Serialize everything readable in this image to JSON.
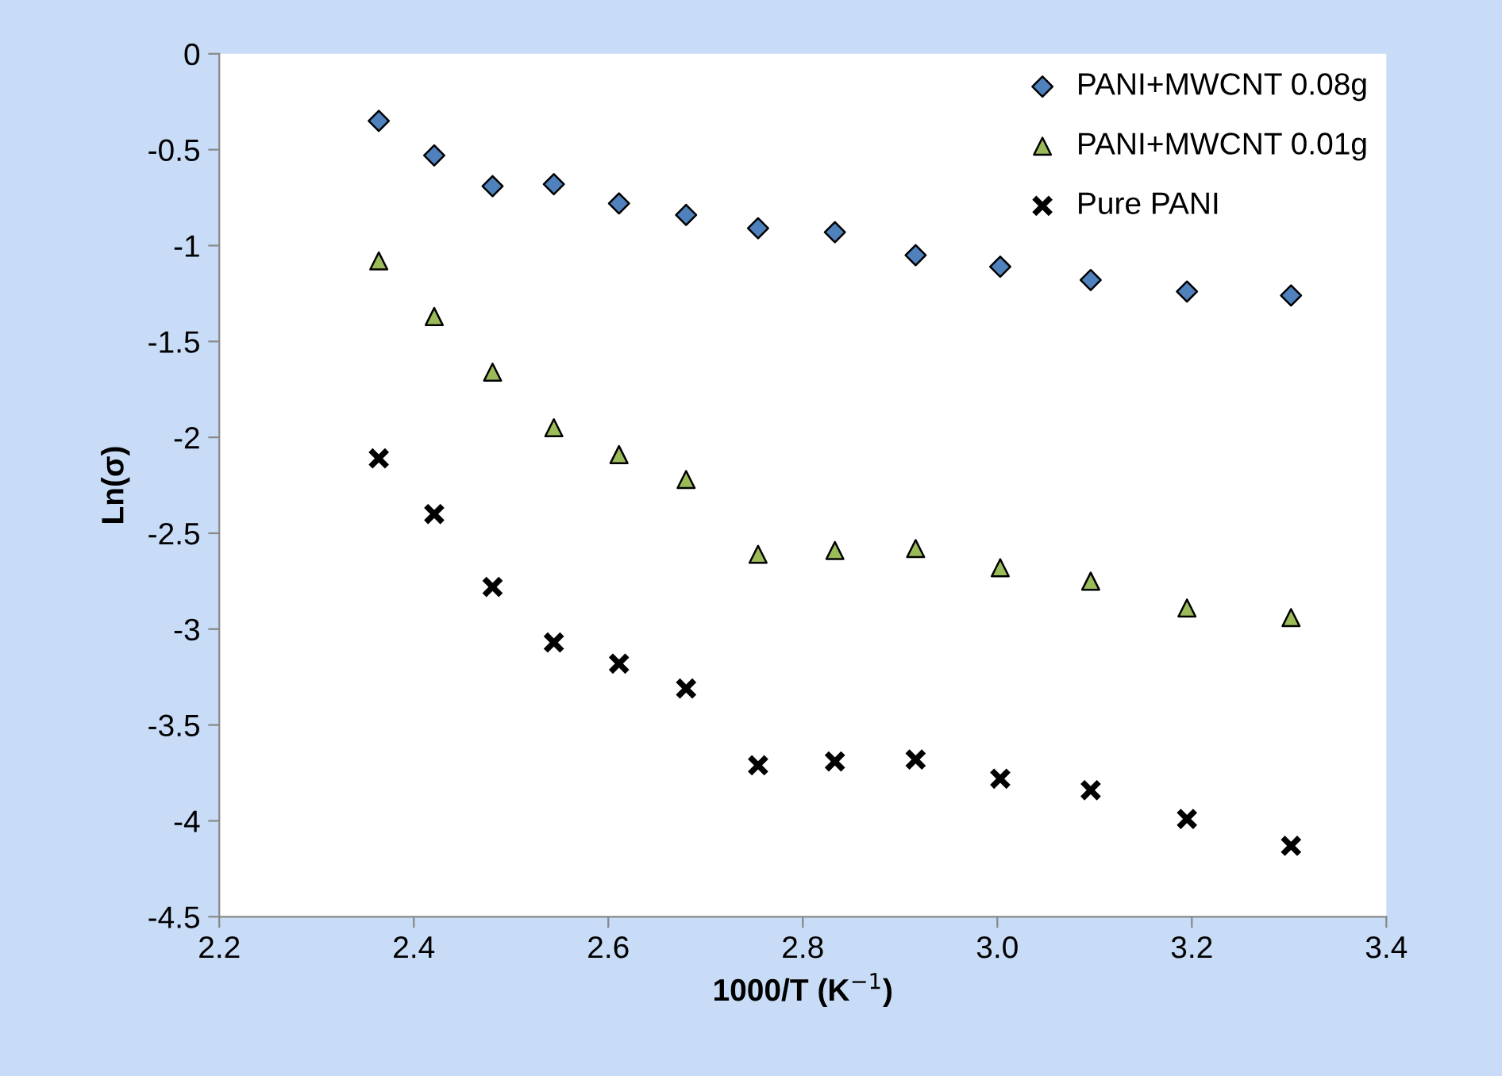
{
  "chart_data": {
    "type": "scatter",
    "xlabel": "1000/T (K$^{−1}$)",
    "ylabel": "Ln(σ)",
    "xlim": [
      2.2,
      3.4
    ],
    "ylim": [
      -4.5,
      0
    ],
    "xticks": [
      2.2,
      2.4,
      2.6,
      2.8,
      {
        "value": 3.0,
        "label": "3.0"
      },
      3.2,
      3.4
    ],
    "yticks": [
      0,
      -0.5,
      -1,
      -1.5,
      -2,
      -2.5,
      -3,
      -3.5,
      -4,
      -4.5
    ],
    "x": [
      2.364,
      2.421,
      2.481,
      2.544,
      2.611,
      2.68,
      2.754,
      2.833,
      2.916,
      3.003,
      3.096,
      3.195,
      3.302
    ],
    "grid": false,
    "legend": "top right",
    "series": [
      {
        "name": "PANI+MWCNT 0.08g",
        "color": "#4f81bd",
        "marker": "diamond",
        "values": [
          -0.35,
          -0.53,
          -0.69,
          -0.68,
          -0.78,
          -0.84,
          -0.91,
          -0.93,
          -1.05,
          -1.11,
          -1.18,
          -1.24,
          -1.26
        ]
      },
      {
        "name": "PANI+MWCNT 0.01g",
        "color": "#9bbb59",
        "marker": "triangle",
        "values": [
          -1.08,
          -1.37,
          -1.66,
          -1.95,
          -2.09,
          -2.22,
          -2.61,
          -2.59,
          -2.58,
          -2.68,
          -2.75,
          -2.89,
          -2.94
        ]
      },
      {
        "name": "Pure PANI",
        "color": "#000000",
        "marker": "cross",
        "values": [
          -2.11,
          -2.4,
          -2.78,
          -3.07,
          -3.18,
          -3.31,
          -3.71,
          -3.69,
          -3.68,
          -3.78,
          -3.84,
          -3.99,
          -4.13
        ]
      }
    ]
  }
}
